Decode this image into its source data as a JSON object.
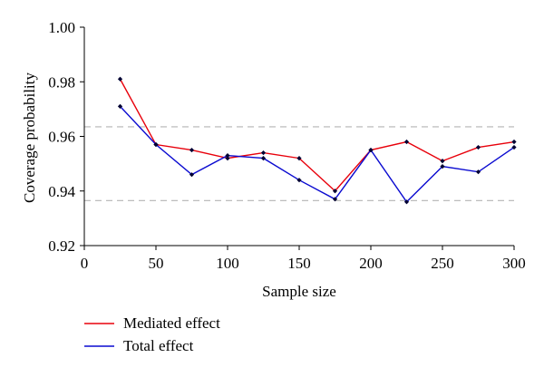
{
  "chart_data": {
    "type": "line",
    "xlabel": "Sample size",
    "ylabel": "Coverage probability",
    "xlim": [
      0,
      300
    ],
    "ylim": [
      0.92,
      1.0
    ],
    "xticks": [
      0,
      50,
      100,
      150,
      200,
      250,
      300
    ],
    "yticks": [
      0.92,
      0.94,
      0.96,
      0.98,
      1.0
    ],
    "xtick_labels": [
      "0",
      "50",
      "100",
      "150",
      "200",
      "250",
      "300"
    ],
    "ytick_labels": [
      "0.92",
      "0.94",
      "0.96",
      "0.98",
      "1.00"
    ],
    "reference_lines": [
      0.9635,
      0.9365
    ],
    "x": [
      25,
      50,
      75,
      100,
      125,
      150,
      175,
      200,
      225,
      250,
      275,
      300
    ],
    "series": [
      {
        "name": "Mediated effect",
        "color": "#e8000b",
        "values": [
          0.981,
          0.957,
          0.955,
          0.952,
          0.954,
          0.952,
          0.94,
          0.955,
          0.958,
          0.951,
          0.956,
          0.958
        ]
      },
      {
        "name": "Total effect",
        "color": "#0a0ad0",
        "values": [
          0.971,
          0.957,
          0.946,
          0.953,
          0.952,
          0.944,
          0.937,
          0.955,
          0.936,
          0.949,
          0.947,
          0.956
        ]
      }
    ],
    "marker_color": "#000033",
    "reference_line_color": "#b4b4b4",
    "legend_position": "bottom-left"
  }
}
